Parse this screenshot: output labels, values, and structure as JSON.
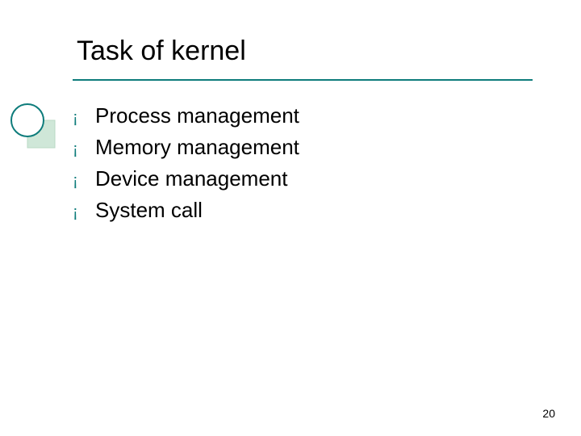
{
  "title": "Task of kernel",
  "title_color": "#000000",
  "title_fontsize": 34,
  "rule_color": "#0e7c7b",
  "bullet_glyph": "¡",
  "bullet_color": "#0e7c7b",
  "items": [
    "Process management",
    "Memory management",
    "Device management",
    "System call"
  ],
  "item_fontsize": 26,
  "item_color": "#000000",
  "page_number": "20",
  "background_color": "#ffffff",
  "decoration": {
    "circle_stroke": "#0e7c7b",
    "circle_fill": "#ffffff",
    "square_fill": "#cfe7d8",
    "square_stroke": "#b8d8c4"
  }
}
